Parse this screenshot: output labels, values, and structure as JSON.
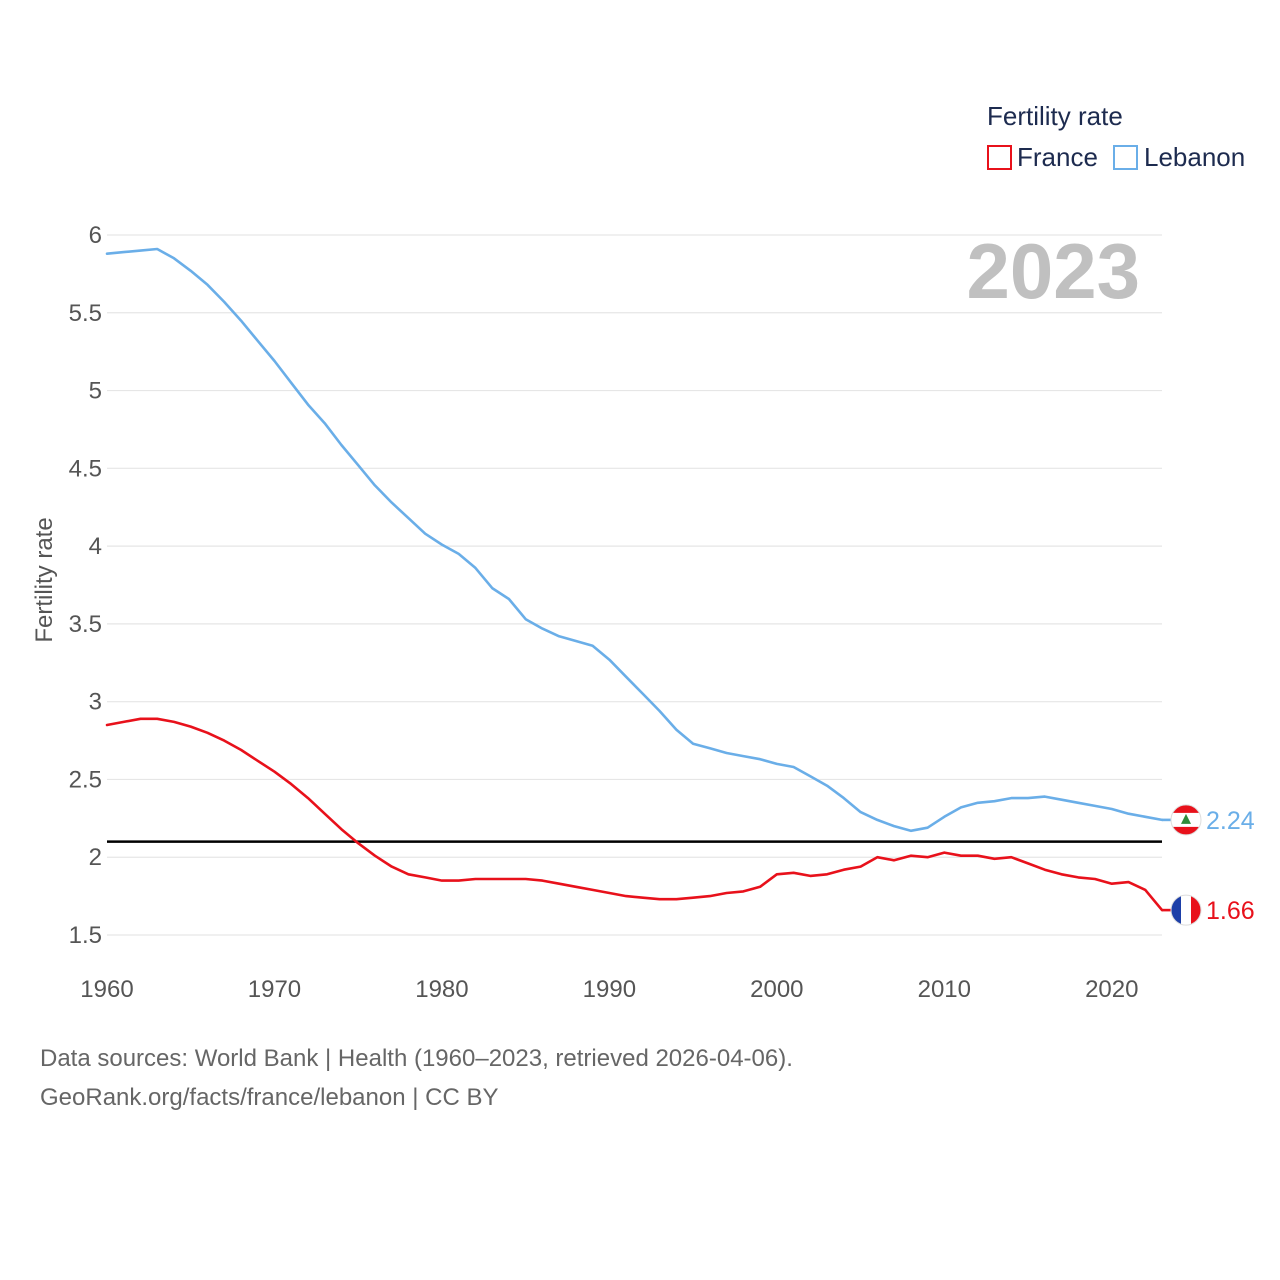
{
  "chart_data": {
    "type": "line",
    "title": "Fertility rate",
    "xlabel": "",
    "ylabel": "Fertility rate",
    "xlim": [
      1960,
      2023
    ],
    "ylim": [
      1.5,
      6
    ],
    "x_ticks": [
      "1960",
      "1970",
      "1980",
      "1990",
      "2000",
      "2010",
      "2020"
    ],
    "y_ticks": [
      "1.5",
      "2",
      "2.5",
      "3",
      "3.5",
      "4",
      "4.5",
      "5",
      "5.5",
      "6"
    ],
    "current_year": "2023",
    "reference_line": 2.1,
    "x": [
      1960,
      1961,
      1962,
      1963,
      1964,
      1965,
      1966,
      1967,
      1968,
      1969,
      1970,
      1971,
      1972,
      1973,
      1974,
      1975,
      1976,
      1977,
      1978,
      1979,
      1980,
      1981,
      1982,
      1983,
      1984,
      1985,
      1986,
      1987,
      1988,
      1989,
      1990,
      1991,
      1992,
      1993,
      1994,
      1995,
      1996,
      1997,
      1998,
      1999,
      2000,
      2001,
      2002,
      2003,
      2004,
      2005,
      2006,
      2007,
      2008,
      2009,
      2010,
      2011,
      2012,
      2013,
      2014,
      2015,
      2016,
      2017,
      2018,
      2019,
      2020,
      2021,
      2022,
      2023
    ],
    "series": [
      {
        "name": "France",
        "color": "#e8111b",
        "end_label": "1.66",
        "flag": "france-flag",
        "values": [
          2.85,
          2.87,
          2.89,
          2.89,
          2.87,
          2.84,
          2.8,
          2.75,
          2.69,
          2.62,
          2.55,
          2.47,
          2.38,
          2.28,
          2.18,
          2.09,
          2.01,
          1.94,
          1.89,
          1.87,
          1.85,
          1.85,
          1.86,
          1.86,
          1.86,
          1.86,
          1.85,
          1.83,
          1.81,
          1.79,
          1.77,
          1.75,
          1.74,
          1.73,
          1.73,
          1.74,
          1.75,
          1.77,
          1.78,
          1.81,
          1.89,
          1.9,
          1.88,
          1.89,
          1.92,
          1.94,
          2.0,
          1.98,
          2.01,
          2.0,
          2.03,
          2.01,
          2.01,
          1.99,
          2.0,
          1.96,
          1.92,
          1.89,
          1.87,
          1.86,
          1.83,
          1.84,
          1.79,
          1.66
        ]
      },
      {
        "name": "Lebanon",
        "color": "#6aaee8",
        "end_label": "2.24",
        "flag": "lebanon-flag",
        "values": [
          5.88,
          5.89,
          5.9,
          5.91,
          5.85,
          5.77,
          5.68,
          5.57,
          5.45,
          5.32,
          5.19,
          5.05,
          4.91,
          4.79,
          4.65,
          4.52,
          4.39,
          4.28,
          4.18,
          4.08,
          4.01,
          3.95,
          3.86,
          3.73,
          3.66,
          3.53,
          3.47,
          3.42,
          3.39,
          3.36,
          3.27,
          3.16,
          3.05,
          2.94,
          2.82,
          2.73,
          2.7,
          2.67,
          2.65,
          2.63,
          2.6,
          2.58,
          2.52,
          2.46,
          2.38,
          2.29,
          2.24,
          2.2,
          2.17,
          2.19,
          2.26,
          2.32,
          2.35,
          2.36,
          2.38,
          2.38,
          2.39,
          2.37,
          2.35,
          2.33,
          2.31,
          2.28,
          2.26,
          2.24
        ]
      }
    ]
  },
  "footer": {
    "line1": "Data sources: World Bank | Health (1960–2023, retrieved 2026-04-06).",
    "line2": "GeoRank.org/facts/france/lebanon | CC BY"
  }
}
